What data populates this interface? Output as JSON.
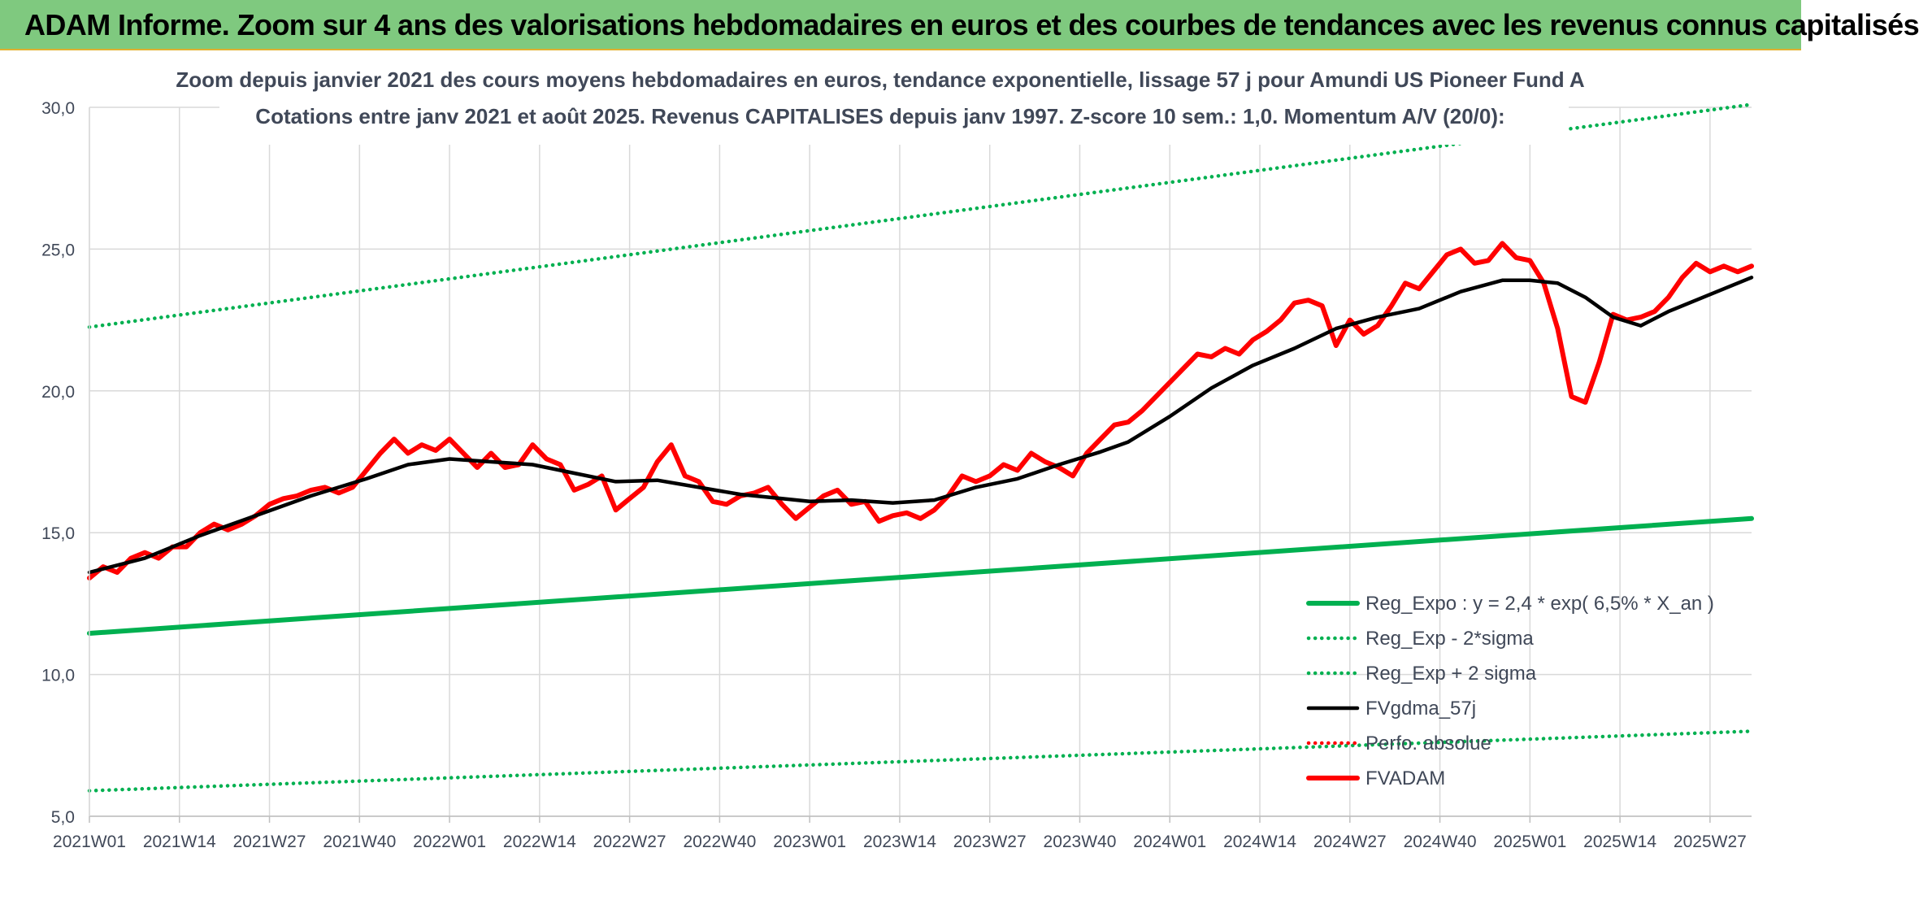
{
  "banner": {
    "text": "ADAM Informe. Zoom sur 4 ans des valorisations hebdomadaires en euros et des courbes de tendances avec les revenus connus capitalisés"
  },
  "colors": {
    "banner_bg": "#7fc97f",
    "reg_expo": "#00b050",
    "sigma_lines": "#00b050",
    "fvgdma": "#000000",
    "perfo": "#ff0000",
    "fvadam": "#ff0000",
    "grid": "#d9d9d9"
  },
  "chart_data": {
    "type": "line",
    "title_lines": [
      "Zoom depuis janvier 2021 des cours moyens hebdomadaires en euros, tendance exponentielle, lissage 57 j pour Amundi US Pioneer Fund A",
      "Cotations entre janv 2021 et août 2025. Revenus CAPITALISES depuis janv 1997. Z-score 10 sem.: 1,0. Momentum A/V (20/0):"
    ],
    "xlabel": "",
    "ylabel": "",
    "ylim": [
      5,
      30
    ],
    "y_ticks": [
      "5,0",
      "10,0",
      "15,0",
      "20,0",
      "25,0",
      "30,0"
    ],
    "y_tick_values": [
      5,
      10,
      15,
      20,
      25,
      30
    ],
    "x_range_weeks": [
      0,
      240
    ],
    "x_ticks": [
      {
        "label": "2021W01",
        "week": 0
      },
      {
        "label": "2021W14",
        "week": 13
      },
      {
        "label": "2021W27",
        "week": 26
      },
      {
        "label": "2021W40",
        "week": 39
      },
      {
        "label": "2022W01",
        "week": 52
      },
      {
        "label": "2022W14",
        "week": 65
      },
      {
        "label": "2022W27",
        "week": 78
      },
      {
        "label": "2022W40",
        "week": 91
      },
      {
        "label": "2023W01",
        "week": 104
      },
      {
        "label": "2023W14",
        "week": 117
      },
      {
        "label": "2023W27",
        "week": 130
      },
      {
        "label": "2023W40",
        "week": 143
      },
      {
        "label": "2024W01",
        "week": 156
      },
      {
        "label": "2024W14",
        "week": 169
      },
      {
        "label": "2024W27",
        "week": 182
      },
      {
        "label": "2024W40",
        "week": 195
      },
      {
        "label": "2025W01",
        "week": 208
      },
      {
        "label": "2025W14",
        "week": 221
      },
      {
        "label": "2025W27",
        "week": 234
      }
    ],
    "legend_position": "bottom-right",
    "grid": true,
    "series": [
      {
        "name": "Reg_Expo : y = 2,4 * exp( 6,5% *  X_an )",
        "style": "solid-thick",
        "color": "#00b050",
        "points": [
          [
            0,
            11.45
          ],
          [
            240,
            15.5
          ]
        ]
      },
      {
        "name": "Reg_Exp - 2*sigma",
        "style": "dotted",
        "color": "#00b050",
        "points": [
          [
            0,
            5.9
          ],
          [
            240,
            8.0
          ]
        ]
      },
      {
        "name": "Reg_Exp + 2 sigma",
        "style": "dotted",
        "color": "#00b050",
        "points": [
          [
            0,
            22.25
          ],
          [
            240,
            30.1
          ]
        ]
      },
      {
        "name": "FVgdma_57j",
        "style": "solid",
        "color": "#000000",
        "points": [
          [
            0,
            13.6
          ],
          [
            8,
            14.1
          ],
          [
            16,
            14.9
          ],
          [
            24,
            15.6
          ],
          [
            32,
            16.3
          ],
          [
            40,
            16.9
          ],
          [
            46,
            17.4
          ],
          [
            52,
            17.6
          ],
          [
            58,
            17.5
          ],
          [
            64,
            17.4
          ],
          [
            70,
            17.1
          ],
          [
            76,
            16.8
          ],
          [
            82,
            16.85
          ],
          [
            88,
            16.6
          ],
          [
            94,
            16.35
          ],
          [
            100,
            16.2
          ],
          [
            104,
            16.1
          ],
          [
            110,
            16.15
          ],
          [
            116,
            16.05
          ],
          [
            122,
            16.15
          ],
          [
            128,
            16.6
          ],
          [
            134,
            16.9
          ],
          [
            140,
            17.4
          ],
          [
            146,
            17.85
          ],
          [
            150,
            18.2
          ],
          [
            156,
            19.1
          ],
          [
            162,
            20.1
          ],
          [
            168,
            20.9
          ],
          [
            174,
            21.5
          ],
          [
            180,
            22.2
          ],
          [
            186,
            22.6
          ],
          [
            192,
            22.9
          ],
          [
            198,
            23.5
          ],
          [
            204,
            23.9
          ],
          [
            208,
            23.9
          ],
          [
            212,
            23.8
          ],
          [
            216,
            23.3
          ],
          [
            220,
            22.6
          ],
          [
            224,
            22.3
          ],
          [
            228,
            22.8
          ],
          [
            234,
            23.4
          ],
          [
            240,
            24.0
          ]
        ]
      },
      {
        "name": "Perfo. absolue",
        "style": "dotted",
        "color": "#ff0000",
        "points": []
      },
      {
        "name": "FVADAM",
        "style": "solid-thick",
        "color": "#ff0000",
        "points": [
          [
            0,
            13.4
          ],
          [
            2,
            13.8
          ],
          [
            4,
            13.6
          ],
          [
            6,
            14.1
          ],
          [
            8,
            14.3
          ],
          [
            10,
            14.1
          ],
          [
            12,
            14.5
          ],
          [
            14,
            14.5
          ],
          [
            16,
            15.0
          ],
          [
            18,
            15.3
          ],
          [
            20,
            15.1
          ],
          [
            22,
            15.3
          ],
          [
            24,
            15.6
          ],
          [
            26,
            16.0
          ],
          [
            28,
            16.2
          ],
          [
            30,
            16.3
          ],
          [
            32,
            16.5
          ],
          [
            34,
            16.6
          ],
          [
            36,
            16.4
          ],
          [
            38,
            16.6
          ],
          [
            40,
            17.2
          ],
          [
            42,
            17.8
          ],
          [
            44,
            18.3
          ],
          [
            46,
            17.8
          ],
          [
            48,
            18.1
          ],
          [
            50,
            17.9
          ],
          [
            52,
            18.3
          ],
          [
            54,
            17.8
          ],
          [
            56,
            17.3
          ],
          [
            58,
            17.8
          ],
          [
            60,
            17.3
          ],
          [
            62,
            17.4
          ],
          [
            64,
            18.1
          ],
          [
            66,
            17.6
          ],
          [
            68,
            17.4
          ],
          [
            70,
            16.5
          ],
          [
            72,
            16.7
          ],
          [
            74,
            17.0
          ],
          [
            76,
            15.8
          ],
          [
            78,
            16.2
          ],
          [
            80,
            16.6
          ],
          [
            82,
            17.5
          ],
          [
            84,
            18.1
          ],
          [
            86,
            17.0
          ],
          [
            88,
            16.8
          ],
          [
            90,
            16.1
          ],
          [
            92,
            16.0
          ],
          [
            94,
            16.3
          ],
          [
            96,
            16.4
          ],
          [
            98,
            16.6
          ],
          [
            100,
            16.0
          ],
          [
            102,
            15.5
          ],
          [
            104,
            15.9
          ],
          [
            106,
            16.3
          ],
          [
            108,
            16.5
          ],
          [
            110,
            16.0
          ],
          [
            112,
            16.1
          ],
          [
            114,
            15.4
          ],
          [
            116,
            15.6
          ],
          [
            118,
            15.7
          ],
          [
            120,
            15.5
          ],
          [
            122,
            15.8
          ],
          [
            124,
            16.3
          ],
          [
            126,
            17.0
          ],
          [
            128,
            16.8
          ],
          [
            130,
            17.0
          ],
          [
            132,
            17.4
          ],
          [
            134,
            17.2
          ],
          [
            136,
            17.8
          ],
          [
            138,
            17.5
          ],
          [
            140,
            17.3
          ],
          [
            142,
            17.0
          ],
          [
            144,
            17.8
          ],
          [
            146,
            18.3
          ],
          [
            148,
            18.8
          ],
          [
            150,
            18.9
          ],
          [
            152,
            19.3
          ],
          [
            154,
            19.8
          ],
          [
            156,
            20.3
          ],
          [
            158,
            20.8
          ],
          [
            160,
            21.3
          ],
          [
            162,
            21.2
          ],
          [
            164,
            21.5
          ],
          [
            166,
            21.3
          ],
          [
            168,
            21.8
          ],
          [
            170,
            22.1
          ],
          [
            172,
            22.5
          ],
          [
            174,
            23.1
          ],
          [
            176,
            23.2
          ],
          [
            178,
            23.0
          ],
          [
            180,
            21.6
          ],
          [
            182,
            22.5
          ],
          [
            184,
            22.0
          ],
          [
            186,
            22.3
          ],
          [
            188,
            23.0
          ],
          [
            190,
            23.8
          ],
          [
            192,
            23.6
          ],
          [
            194,
            24.2
          ],
          [
            196,
            24.8
          ],
          [
            198,
            25.0
          ],
          [
            200,
            24.5
          ],
          [
            202,
            24.6
          ],
          [
            204,
            25.2
          ],
          [
            206,
            24.7
          ],
          [
            208,
            24.6
          ],
          [
            210,
            23.8
          ],
          [
            212,
            22.2
          ],
          [
            214,
            19.8
          ],
          [
            216,
            19.6
          ],
          [
            218,
            21.0
          ],
          [
            220,
            22.7
          ],
          [
            222,
            22.5
          ],
          [
            224,
            22.6
          ],
          [
            226,
            22.8
          ],
          [
            228,
            23.3
          ],
          [
            230,
            24.0
          ],
          [
            232,
            24.5
          ],
          [
            234,
            24.2
          ],
          [
            236,
            24.4
          ],
          [
            238,
            24.2
          ],
          [
            240,
            24.4
          ]
        ]
      }
    ]
  }
}
